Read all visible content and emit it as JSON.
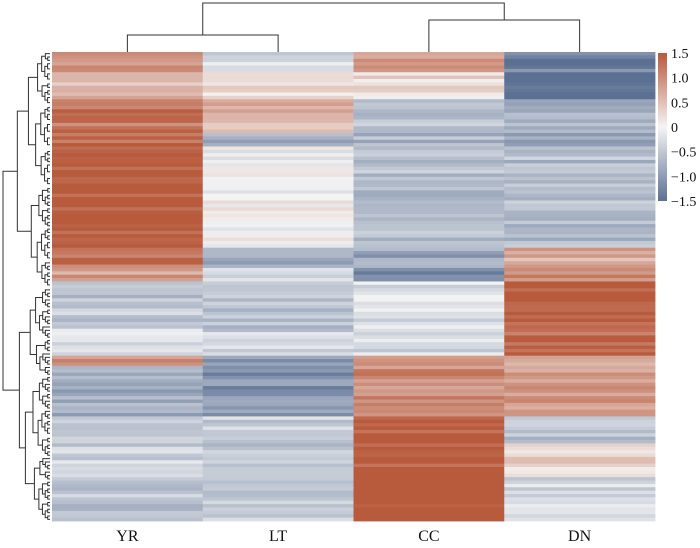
{
  "chart_data": {
    "type": "heatmap",
    "title": "",
    "xlabel": "",
    "ylabel": "",
    "columns": [
      "YR",
      "LT",
      "CC",
      "DN"
    ],
    "color_scale": {
      "min": -1.5,
      "max": 1.5,
      "low_color": "#5b7093",
      "mid_color": "#f4f4f4",
      "high_color": "#b85a3c",
      "ticks": [
        "1.5",
        "1.0",
        "0.5",
        "0",
        "−0.5",
        "−1.0",
        "−1.5"
      ]
    },
    "row_blocks": [
      {
        "rows": 6,
        "values": [
          0.9,
          -0.3,
          0.8,
          -1.3
        ]
      },
      {
        "rows": 8,
        "values": [
          0.6,
          0.2,
          0.3,
          -1.5
        ]
      },
      {
        "rows": 10,
        "values": [
          1.2,
          0.6,
          -0.5,
          -0.8
        ]
      },
      {
        "rows": 4,
        "values": [
          1.3,
          -0.8,
          -0.7,
          -1.0
        ]
      },
      {
        "rows": 30,
        "values": [
          1.5,
          0.0,
          -0.6,
          -0.6
        ]
      },
      {
        "rows": 6,
        "values": [
          1.2,
          -0.9,
          -0.9,
          0.7
        ]
      },
      {
        "rows": 4,
        "values": [
          0.8,
          -0.3,
          -1.3,
          1.0
        ]
      },
      {
        "rows": 14,
        "values": [
          -0.5,
          -0.6,
          -0.2,
          1.5
        ]
      },
      {
        "rows": 8,
        "values": [
          -0.2,
          -0.4,
          -0.3,
          1.3
        ]
      },
      {
        "rows": 3,
        "values": [
          0.9,
          -1.0,
          0.9,
          0.8
        ]
      },
      {
        "rows": 15,
        "values": [
          -0.8,
          -1.1,
          1.0,
          0.9
        ]
      },
      {
        "rows": 8,
        "values": [
          -0.6,
          -0.4,
          1.5,
          -0.6
        ]
      },
      {
        "rows": 10,
        "values": [
          -0.4,
          -0.5,
          1.5,
          0.3
        ]
      },
      {
        "rows": 13,
        "values": [
          -0.5,
          -0.4,
          1.5,
          -0.3
        ]
      }
    ]
  }
}
